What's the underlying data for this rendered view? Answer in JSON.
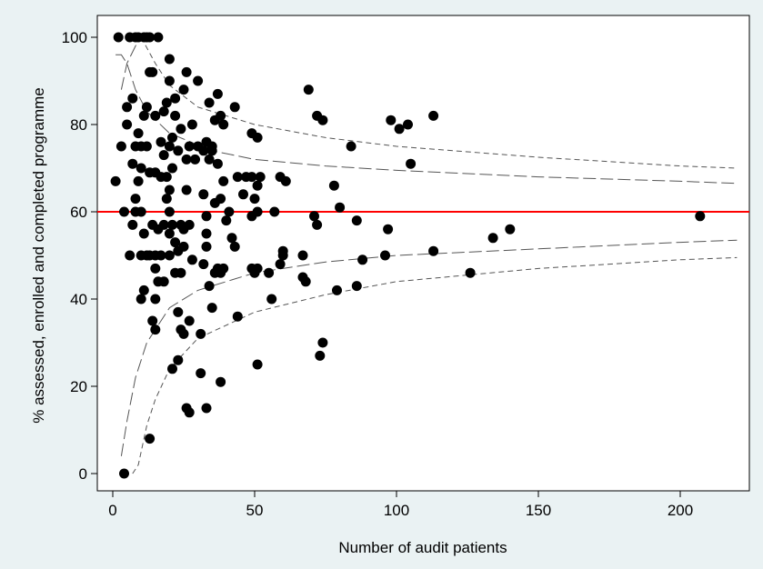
{
  "chart_data": {
    "type": "scatter",
    "title": "",
    "xlabel": "Number of audit patients",
    "ylabel": "% assessed, enrolled and completed programme",
    "xlim": [
      0,
      220
    ],
    "ylim": [
      0,
      100
    ],
    "xticks": [
      0,
      50,
      100,
      150,
      200
    ],
    "yticks": [
      0,
      20,
      40,
      60,
      80,
      100
    ],
    "grid": false,
    "legend": "none",
    "colors": {
      "background": "#eaf2f3",
      "plot_area": "#ffffff",
      "points": "#000000",
      "target_line": "#ff0000",
      "funnel_limits": "#555555"
    },
    "target_line": {
      "y": 60
    },
    "funnel_limits": [
      {
        "name": "",
        "style": "long-dash",
        "points": [
          [
            3,
            88
          ],
          [
            5,
            94
          ],
          [
            8,
            98
          ],
          [
            10,
            100
          ]
        ]
      },
      {
        "name": "",
        "style": "long-dash",
        "points": [
          [
            1,
            96
          ],
          [
            3,
            96
          ],
          [
            5,
            94
          ],
          [
            8,
            88
          ],
          [
            12,
            83
          ],
          [
            20,
            78
          ],
          [
            35,
            74
          ],
          [
            50,
            72
          ],
          [
            75,
            70.5
          ],
          [
            100,
            69.5
          ],
          [
            150,
            68
          ],
          [
            200,
            67
          ],
          [
            220,
            66.5
          ]
        ]
      },
      {
        "name": "",
        "style": "short-dash",
        "points": [
          [
            10,
            100
          ],
          [
            15,
            94
          ],
          [
            20,
            89
          ],
          [
            30,
            84
          ],
          [
            50,
            80
          ],
          [
            75,
            77
          ],
          [
            100,
            75
          ],
          [
            150,
            72.5
          ],
          [
            200,
            70.5
          ],
          [
            220,
            70
          ]
        ]
      },
      {
        "name": "",
        "style": "long-dash",
        "points": [
          [
            3,
            4
          ],
          [
            5,
            12
          ],
          [
            8,
            22
          ],
          [
            12,
            30
          ],
          [
            20,
            38
          ],
          [
            30,
            42
          ],
          [
            50,
            46
          ],
          [
            75,
            48.5
          ],
          [
            100,
            50
          ],
          [
            150,
            51.5
          ],
          [
            200,
            53
          ],
          [
            220,
            53.5
          ]
        ]
      },
      {
        "name": "",
        "style": "short-dash",
        "points": [
          [
            7,
            0
          ],
          [
            9,
            2
          ],
          [
            12,
            11
          ],
          [
            15,
            17
          ],
          [
            20,
            24
          ],
          [
            30,
            31
          ],
          [
            50,
            37
          ],
          [
            75,
            41
          ],
          [
            100,
            44
          ],
          [
            150,
            47
          ],
          [
            200,
            49
          ],
          [
            220,
            49.5
          ]
        ]
      }
    ],
    "points": [
      [
        2,
        100
      ],
      [
        6,
        100
      ],
      [
        8,
        100
      ],
      [
        9,
        100
      ],
      [
        11,
        100
      ],
      [
        12,
        100
      ],
      [
        13,
        100
      ],
      [
        16,
        100
      ],
      [
        4,
        0
      ],
      [
        13,
        8
      ],
      [
        1,
        67
      ],
      [
        3,
        75
      ],
      [
        4,
        60
      ],
      [
        5,
        80
      ],
      [
        5,
        84
      ],
      [
        6,
        50
      ],
      [
        7,
        71
      ],
      [
        7,
        86
      ],
      [
        7,
        57
      ],
      [
        8,
        75
      ],
      [
        8,
        63
      ],
      [
        8,
        60
      ],
      [
        9,
        67
      ],
      [
        9,
        78
      ],
      [
        10,
        40
      ],
      [
        10,
        50
      ],
      [
        10,
        60
      ],
      [
        10,
        70
      ],
      [
        10,
        75
      ],
      [
        11,
        42
      ],
      [
        11,
        55
      ],
      [
        11,
        82
      ],
      [
        12,
        50
      ],
      [
        12,
        75
      ],
      [
        12,
        84
      ],
      [
        13,
        50
      ],
      [
        13,
        69
      ],
      [
        13,
        92
      ],
      [
        14,
        35
      ],
      [
        14,
        57
      ],
      [
        14,
        92
      ],
      [
        15,
        33
      ],
      [
        15,
        40
      ],
      [
        15,
        47
      ],
      [
        15,
        50
      ],
      [
        15,
        69
      ],
      [
        15,
        82
      ],
      [
        16,
        44
      ],
      [
        16,
        56
      ],
      [
        17,
        50
      ],
      [
        17,
        68
      ],
      [
        17,
        76
      ],
      [
        18,
        44
      ],
      [
        18,
        57
      ],
      [
        18,
        73
      ],
      [
        18,
        83
      ],
      [
        19,
        63
      ],
      [
        19,
        68
      ],
      [
        19,
        85
      ],
      [
        20,
        50
      ],
      [
        20,
        55
      ],
      [
        20,
        60
      ],
      [
        20,
        65
      ],
      [
        20,
        75
      ],
      [
        20,
        90
      ],
      [
        20,
        95
      ],
      [
        21,
        24
      ],
      [
        21,
        57
      ],
      [
        21,
        70
      ],
      [
        21,
        77
      ],
      [
        22,
        46
      ],
      [
        22,
        53
      ],
      [
        22,
        82
      ],
      [
        22,
        86
      ],
      [
        23,
        26
      ],
      [
        23,
        37
      ],
      [
        23,
        51
      ],
      [
        23,
        74
      ],
      [
        24,
        33
      ],
      [
        24,
        46
      ],
      [
        24,
        57
      ],
      [
        24,
        79
      ],
      [
        25,
        32
      ],
      [
        25,
        52
      ],
      [
        25,
        56
      ],
      [
        25,
        88
      ],
      [
        26,
        15
      ],
      [
        26,
        65
      ],
      [
        26,
        72
      ],
      [
        26,
        92
      ],
      [
        27,
        14
      ],
      [
        27,
        35
      ],
      [
        27,
        57
      ],
      [
        27,
        75
      ],
      [
        28,
        49
      ],
      [
        28,
        80
      ],
      [
        29,
        72
      ],
      [
        30,
        75
      ],
      [
        30,
        90
      ],
      [
        31,
        23
      ],
      [
        31,
        32
      ],
      [
        32,
        48
      ],
      [
        32,
        64
      ],
      [
        32,
        74
      ],
      [
        33,
        15
      ],
      [
        33,
        52
      ],
      [
        33,
        55
      ],
      [
        33,
        59
      ],
      [
        33,
        76
      ],
      [
        34,
        43
      ],
      [
        34,
        72
      ],
      [
        34,
        85
      ],
      [
        35,
        38
      ],
      [
        35,
        74
      ],
      [
        35,
        75
      ],
      [
        36,
        46
      ],
      [
        36,
        62
      ],
      [
        36,
        81
      ],
      [
        37,
        47
      ],
      [
        37,
        71
      ],
      [
        37,
        87
      ],
      [
        38,
        21
      ],
      [
        38,
        46
      ],
      [
        38,
        63
      ],
      [
        38,
        82
      ],
      [
        39,
        47
      ],
      [
        39,
        67
      ],
      [
        39,
        80
      ],
      [
        40,
        58
      ],
      [
        41,
        60
      ],
      [
        42,
        54
      ],
      [
        43,
        52
      ],
      [
        43,
        84
      ],
      [
        44,
        36
      ],
      [
        44,
        68
      ],
      [
        46,
        64
      ],
      [
        47,
        68
      ],
      [
        49,
        47
      ],
      [
        49,
        59
      ],
      [
        49,
        68
      ],
      [
        49,
        78
      ],
      [
        50,
        46
      ],
      [
        50,
        63
      ],
      [
        51,
        25
      ],
      [
        51,
        47
      ],
      [
        51,
        60
      ],
      [
        51,
        66
      ],
      [
        51,
        77
      ],
      [
        52,
        68
      ],
      [
        55,
        46
      ],
      [
        56,
        40
      ],
      [
        57,
        60
      ],
      [
        59,
        48
      ],
      [
        59,
        68
      ],
      [
        60,
        50
      ],
      [
        60,
        51
      ],
      [
        61,
        67
      ],
      [
        67,
        45
      ],
      [
        67,
        50
      ],
      [
        68,
        44
      ],
      [
        69,
        88
      ],
      [
        71,
        59
      ],
      [
        72,
        57
      ],
      [
        72,
        82
      ],
      [
        73,
        27
      ],
      [
        74,
        30
      ],
      [
        74,
        81
      ],
      [
        78,
        66
      ],
      [
        79,
        42
      ],
      [
        80,
        61
      ],
      [
        84,
        75
      ],
      [
        86,
        43
      ],
      [
        86,
        58
      ],
      [
        88,
        49
      ],
      [
        96,
        50
      ],
      [
        97,
        56
      ],
      [
        98,
        81
      ],
      [
        101,
        79
      ],
      [
        104,
        80
      ],
      [
        105,
        71
      ],
      [
        113,
        51
      ],
      [
        113,
        82
      ],
      [
        126,
        46
      ],
      [
        134,
        54
      ],
      [
        140,
        56
      ],
      [
        207,
        59
      ]
    ]
  }
}
